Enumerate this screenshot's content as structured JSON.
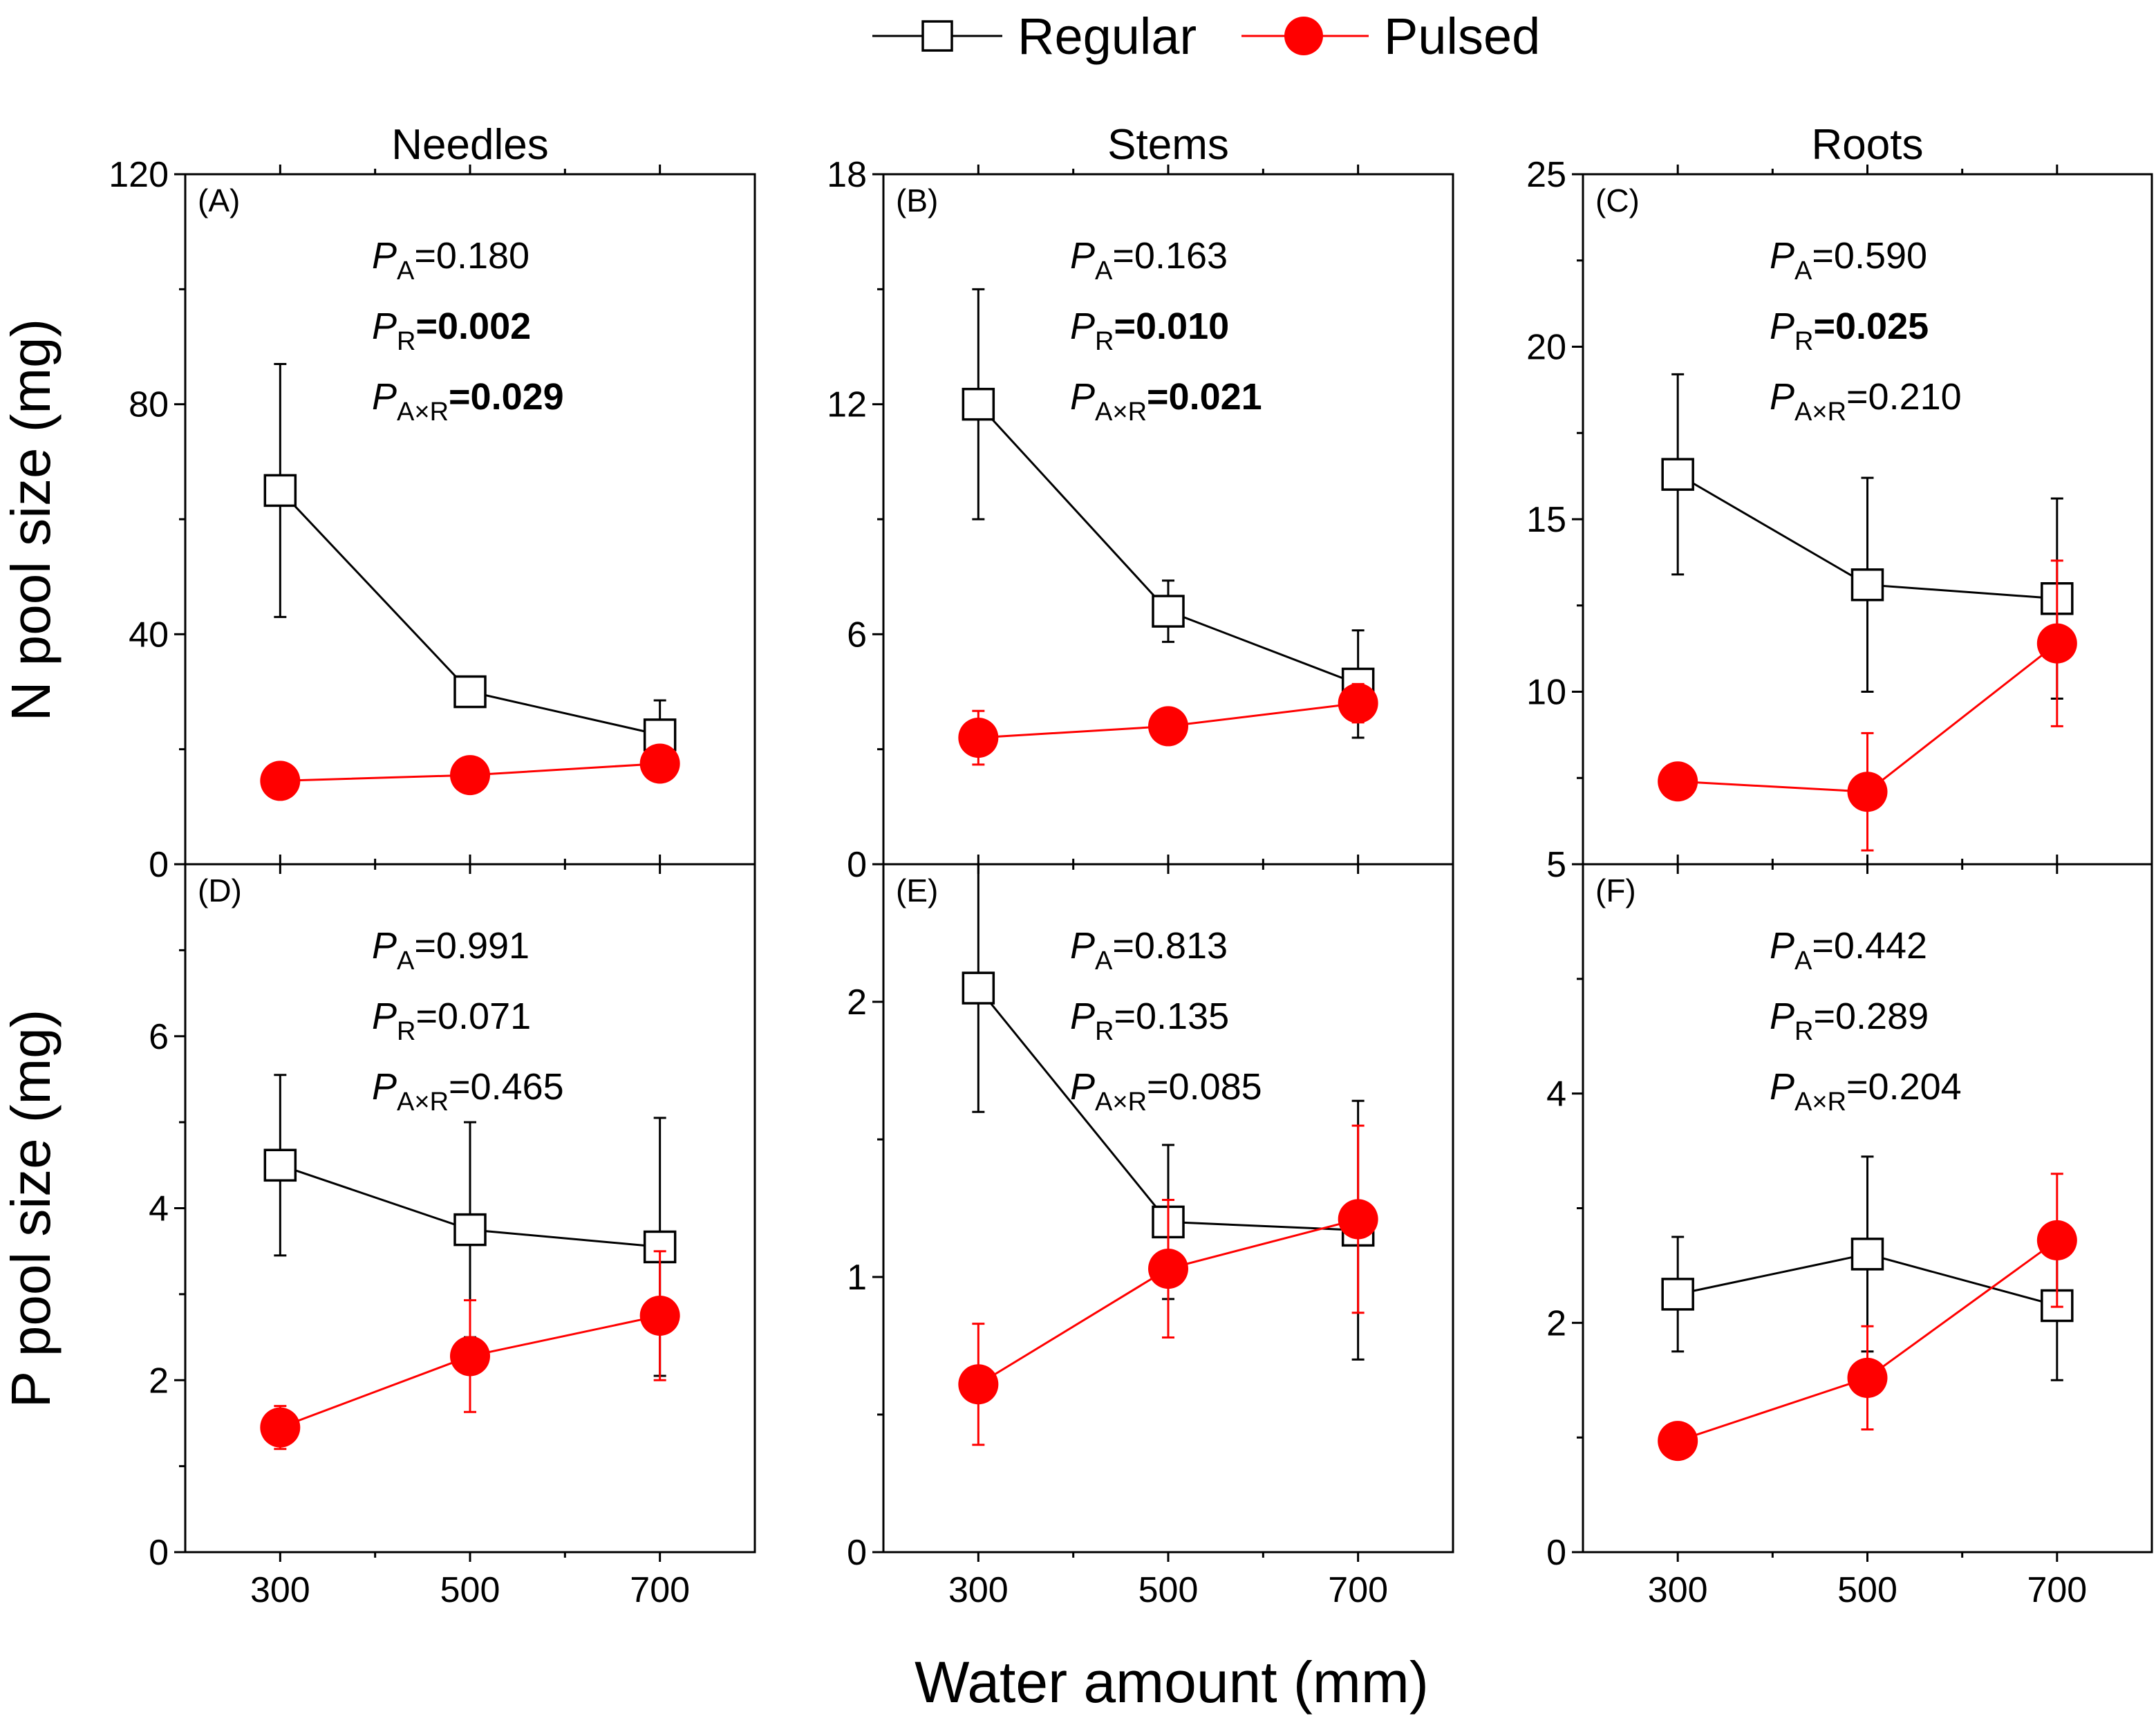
{
  "chart_data": {
    "type": "line",
    "legend": {
      "position": "top-center",
      "entries": [
        {
          "name": "Regular",
          "marker": "open-square",
          "color": "#000000"
        },
        {
          "name": "Pulsed",
          "marker": "filled-circle",
          "color": "#ff0000"
        }
      ]
    },
    "xlabel": "Water amount (mm)",
    "x": [
      300,
      500,
      700
    ],
    "x_tick_labels": [
      "300",
      "500",
      "700"
    ],
    "ylabels": {
      "row1": "N pool size (mg)",
      "row2": "P pool size (mg)"
    },
    "panels": [
      {
        "id": "A",
        "label": "(A)",
        "title": "Needles",
        "ylim": [
          0,
          120
        ],
        "yticks": [
          0,
          40,
          80,
          120
        ],
        "ytick_labels": [
          "0",
          "40",
          "80",
          "120"
        ],
        "series": [
          {
            "name": "Regular",
            "values": [
              65,
              30,
              22.5
            ],
            "errors": [
              22,
              2.5,
              6
            ]
          },
          {
            "name": "Pulsed",
            "values": [
              14.5,
              15.5,
              17.5
            ],
            "errors": [
              0.8,
              0.8,
              1.5
            ]
          }
        ],
        "stats": [
          {
            "main": "P",
            "sub": "A",
            "value": "=0.180",
            "bold": false
          },
          {
            "main": "P",
            "sub": "R",
            "value": "=0.002",
            "bold": true
          },
          {
            "main": "P",
            "sub": "A×R",
            "value": "=0.029",
            "bold": true
          }
        ]
      },
      {
        "id": "B",
        "label": "(B)",
        "title": "Stems",
        "ylim": [
          0,
          18
        ],
        "yticks": [
          0,
          6,
          12,
          18
        ],
        "ytick_labels": [
          "0",
          "6",
          "12",
          "18"
        ],
        "series": [
          {
            "name": "Regular",
            "values": [
              12,
              6.6,
              4.7
            ],
            "errors": [
              3,
              0.8,
              1.4
            ]
          },
          {
            "name": "Pulsed",
            "values": [
              3.3,
              3.6,
              4.2
            ],
            "errors": [
              0.7,
              0.2,
              0.5
            ]
          }
        ],
        "stats": [
          {
            "main": "P",
            "sub": "A",
            "value": "=0.163",
            "bold": false
          },
          {
            "main": "P",
            "sub": "R",
            "value": "=0.010",
            "bold": true
          },
          {
            "main": "P",
            "sub": "A×R",
            "value": "=0.021",
            "bold": true
          }
        ]
      },
      {
        "id": "C",
        "label": "(C)",
        "title": "Roots",
        "ylim": [
          5,
          25
        ],
        "yticks": [
          5,
          10,
          15,
          20,
          25
        ],
        "ytick_labels": [
          "5",
          "10",
          "15",
          "20",
          "25"
        ],
        "series": [
          {
            "name": "Regular",
            "values": [
              16.3,
              13.1,
              12.7
            ],
            "errors": [
              2.9,
              3.1,
              2.9
            ]
          },
          {
            "name": "Pulsed",
            "values": [
              7.4,
              7.1,
              11.4
            ],
            "errors": [
              0.2,
              1.7,
              2.4
            ]
          }
        ],
        "stats": [
          {
            "main": "P",
            "sub": "A",
            "value": "=0.590",
            "bold": false
          },
          {
            "main": "P",
            "sub": "R",
            "value": "=0.025",
            "bold": true
          },
          {
            "main": "P",
            "sub": "A×R",
            "value": "=0.210",
            "bold": false
          }
        ]
      },
      {
        "id": "D",
        "label": "(D)",
        "title": "",
        "ylim": [
          0,
          8
        ],
        "yticks": [
          0,
          2,
          4,
          6
        ],
        "ytick_labels": [
          "0",
          "2",
          "4",
          "6"
        ],
        "series": [
          {
            "name": "Regular",
            "values": [
              4.5,
              3.75,
              3.55
            ],
            "errors": [
              1.05,
              1.25,
              1.5
            ]
          },
          {
            "name": "Pulsed",
            "values": [
              1.45,
              2.28,
              2.75
            ],
            "errors": [
              0.25,
              0.65,
              0.75
            ]
          }
        ],
        "stats": [
          {
            "main": "P",
            "sub": "A",
            "value": "=0.991",
            "bold": false
          },
          {
            "main": "P",
            "sub": "R",
            "value": "=0.071",
            "bold": false
          },
          {
            "main": "P",
            "sub": "A×R",
            "value": "=0.465",
            "bold": false
          }
        ]
      },
      {
        "id": "E",
        "label": "(E)",
        "title": "",
        "ylim": [
          0,
          2.5
        ],
        "yticks": [
          0,
          1,
          2
        ],
        "ytick_labels": [
          "0",
          "1",
          "2"
        ],
        "series": [
          {
            "name": "Regular",
            "values": [
              2.05,
              1.2,
              1.17
            ],
            "errors": [
              0.45,
              0.28,
              0.47
            ]
          },
          {
            "name": "Pulsed",
            "values": [
              0.61,
              1.03,
              1.21
            ],
            "errors": [
              0.22,
              0.25,
              0.34
            ]
          }
        ],
        "stats": [
          {
            "main": "P",
            "sub": "A",
            "value": "=0.813",
            "bold": false
          },
          {
            "main": "P",
            "sub": "R",
            "value": "=0.135",
            "bold": false
          },
          {
            "main": "P",
            "sub": "A×R",
            "value": "=0.085",
            "bold": false
          }
        ]
      },
      {
        "id": "F",
        "label": "(F)",
        "title": "",
        "ylim": [
          0,
          6
        ],
        "yticks": [
          0,
          2,
          4
        ],
        "ytick_labels": [
          "0",
          "2",
          "4"
        ],
        "series": [
          {
            "name": "Regular",
            "values": [
              2.25,
              2.6,
              2.15
            ],
            "errors": [
              0.5,
              0.85,
              0.65
            ]
          },
          {
            "name": "Pulsed",
            "values": [
              0.97,
              1.52,
              2.72
            ],
            "errors": [
              0.1,
              0.45,
              0.58
            ]
          }
        ],
        "stats": [
          {
            "main": "P",
            "sub": "A",
            "value": "=0.442",
            "bold": false
          },
          {
            "main": "P",
            "sub": "R",
            "value": "=0.289",
            "bold": false
          },
          {
            "main": "P",
            "sub": "A×R",
            "value": "=0.204",
            "bold": false
          }
        ]
      }
    ]
  }
}
